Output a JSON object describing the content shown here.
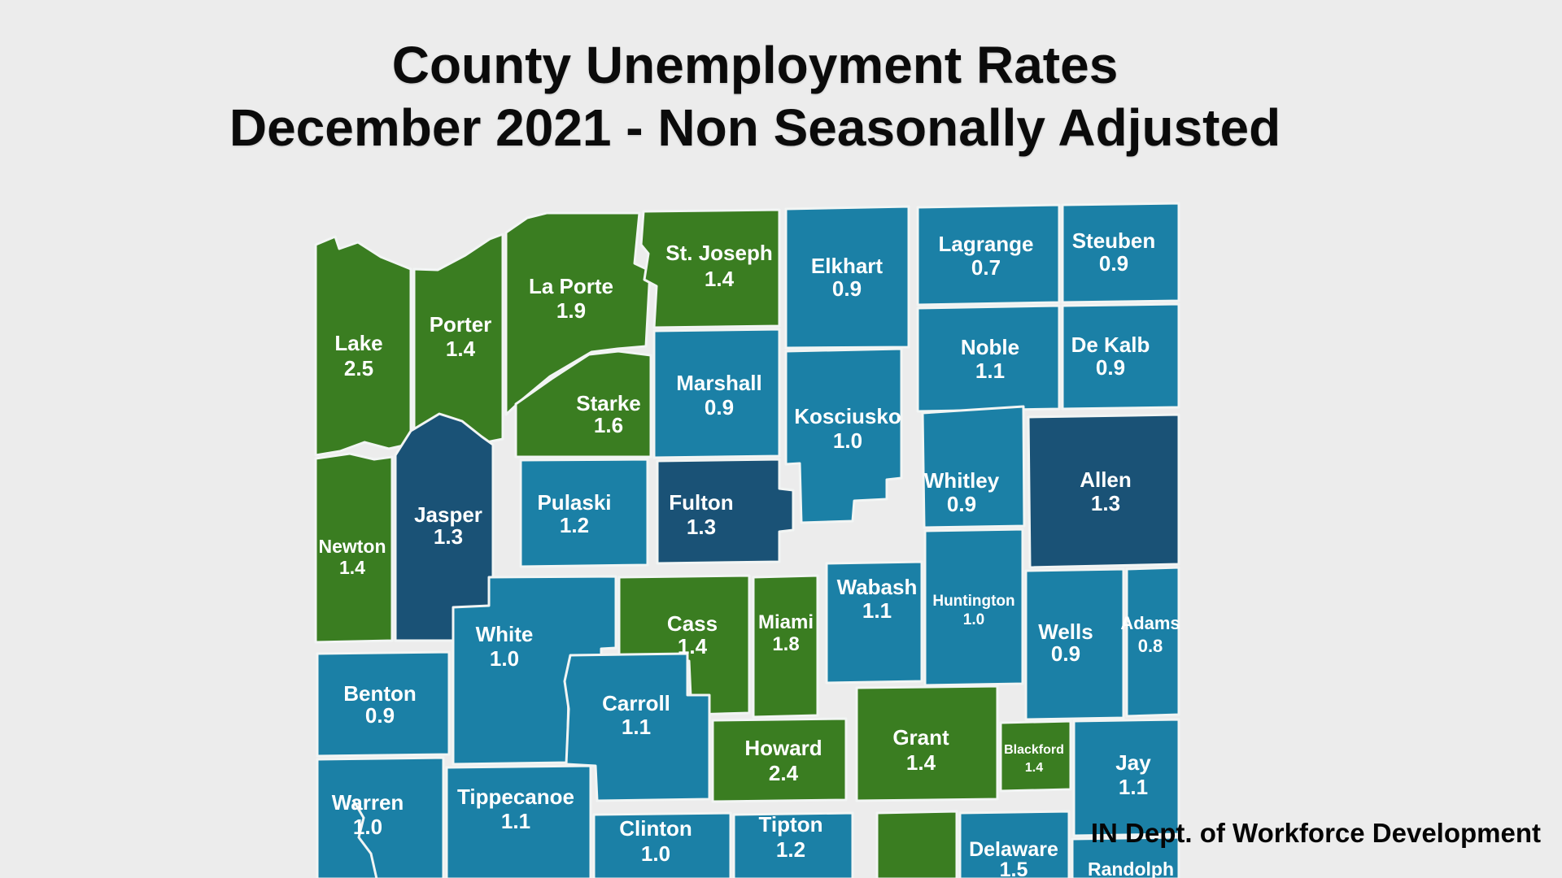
{
  "title": {
    "line1": "County Unemployment Rates",
    "line2": "December 2021 - Non Seasonally Adjusted"
  },
  "attribution": "IN Dept. of Workforce Development",
  "colors": {
    "background": "#ececec",
    "county_border": "#f2f5f4",
    "county_label": "#ffffff",
    "title_text": "#0b0b0b",
    "green": "#3a7d21",
    "teal": "#1b80a6",
    "dark_blue": "#1a5276"
  },
  "map_data": {
    "type": "choropleth",
    "counties": [
      {
        "id": "lake",
        "name": "Lake",
        "value": "2.5",
        "color": "green"
      },
      {
        "id": "porter",
        "name": "Porter",
        "value": "1.4",
        "color": "green"
      },
      {
        "id": "laporte",
        "name": "La Porte",
        "value": "1.9",
        "color": "green"
      },
      {
        "id": "stjoseph",
        "name": "St. Joseph",
        "value": "1.4",
        "color": "green"
      },
      {
        "id": "elkhart",
        "name": "Elkhart",
        "value": "0.9",
        "color": "teal"
      },
      {
        "id": "lagrange",
        "name": "Lagrange",
        "value": "0.7",
        "color": "teal"
      },
      {
        "id": "steuben",
        "name": "Steuben",
        "value": "0.9",
        "color": "teal"
      },
      {
        "id": "noble",
        "name": "Noble",
        "value": "1.1",
        "color": "teal"
      },
      {
        "id": "dekalb",
        "name": "De Kalb",
        "value": "0.9",
        "color": "teal"
      },
      {
        "id": "starke",
        "name": "Starke",
        "value": "1.6",
        "color": "green"
      },
      {
        "id": "marshall",
        "name": "Marshall",
        "value": "0.9",
        "color": "teal"
      },
      {
        "id": "kosciusko",
        "name": "Kosciusko",
        "value": "1.0",
        "color": "teal"
      },
      {
        "id": "whitley",
        "name": "Whitley",
        "value": "0.9",
        "color": "teal"
      },
      {
        "id": "allen",
        "name": "Allen",
        "value": "1.3",
        "color": "dark_blue"
      },
      {
        "id": "newton",
        "name": "Newton",
        "value": "1.4",
        "color": "green"
      },
      {
        "id": "jasper",
        "name": "Jasper",
        "value": "1.3",
        "color": "dark_blue"
      },
      {
        "id": "pulaski",
        "name": "Pulaski",
        "value": "1.2",
        "color": "teal"
      },
      {
        "id": "fulton",
        "name": "Fulton",
        "value": "1.3",
        "color": "dark_blue"
      },
      {
        "id": "white",
        "name": "White",
        "value": "1.0",
        "color": "teal"
      },
      {
        "id": "cass",
        "name": "Cass",
        "value": "1.4",
        "color": "green"
      },
      {
        "id": "miami",
        "name": "Miami",
        "value": "1.8",
        "color": "green"
      },
      {
        "id": "wabash",
        "name": "Wabash",
        "value": "1.1",
        "color": "teal"
      },
      {
        "id": "huntington",
        "name": "Huntington",
        "value": "1.0",
        "color": "teal"
      },
      {
        "id": "wells",
        "name": "Wells",
        "value": "0.9",
        "color": "teal"
      },
      {
        "id": "adams",
        "name": "Adams",
        "value": "0.8",
        "color": "teal"
      },
      {
        "id": "benton",
        "name": "Benton",
        "value": "0.9",
        "color": "teal"
      },
      {
        "id": "carroll",
        "name": "Carroll",
        "value": "1.1",
        "color": "teal"
      },
      {
        "id": "howard",
        "name": "Howard",
        "value": "2.4",
        "color": "green"
      },
      {
        "id": "grant",
        "name": "Grant",
        "value": "1.4",
        "color": "green"
      },
      {
        "id": "blackford",
        "name": "Blackford",
        "value": "1.4",
        "color": "green"
      },
      {
        "id": "jay",
        "name": "Jay",
        "value": "1.1",
        "color": "teal"
      },
      {
        "id": "warren",
        "name": "Warren",
        "value": "1.0",
        "color": "teal"
      },
      {
        "id": "tippecanoe",
        "name": "Tippecanoe",
        "value": "1.1",
        "color": "teal"
      },
      {
        "id": "clinton",
        "name": "Clinton",
        "value": "1.0",
        "color": "teal"
      },
      {
        "id": "tipton",
        "name": "Tipton",
        "value": "1.2",
        "color": "teal"
      },
      {
        "id": "unlabeled1",
        "name": "",
        "value": "",
        "color": "green"
      },
      {
        "id": "delaware",
        "name": "Delaware",
        "value": "1.5",
        "color": "teal"
      },
      {
        "id": "randolph",
        "name": "Randolph",
        "value": "",
        "color": "teal"
      }
    ]
  }
}
